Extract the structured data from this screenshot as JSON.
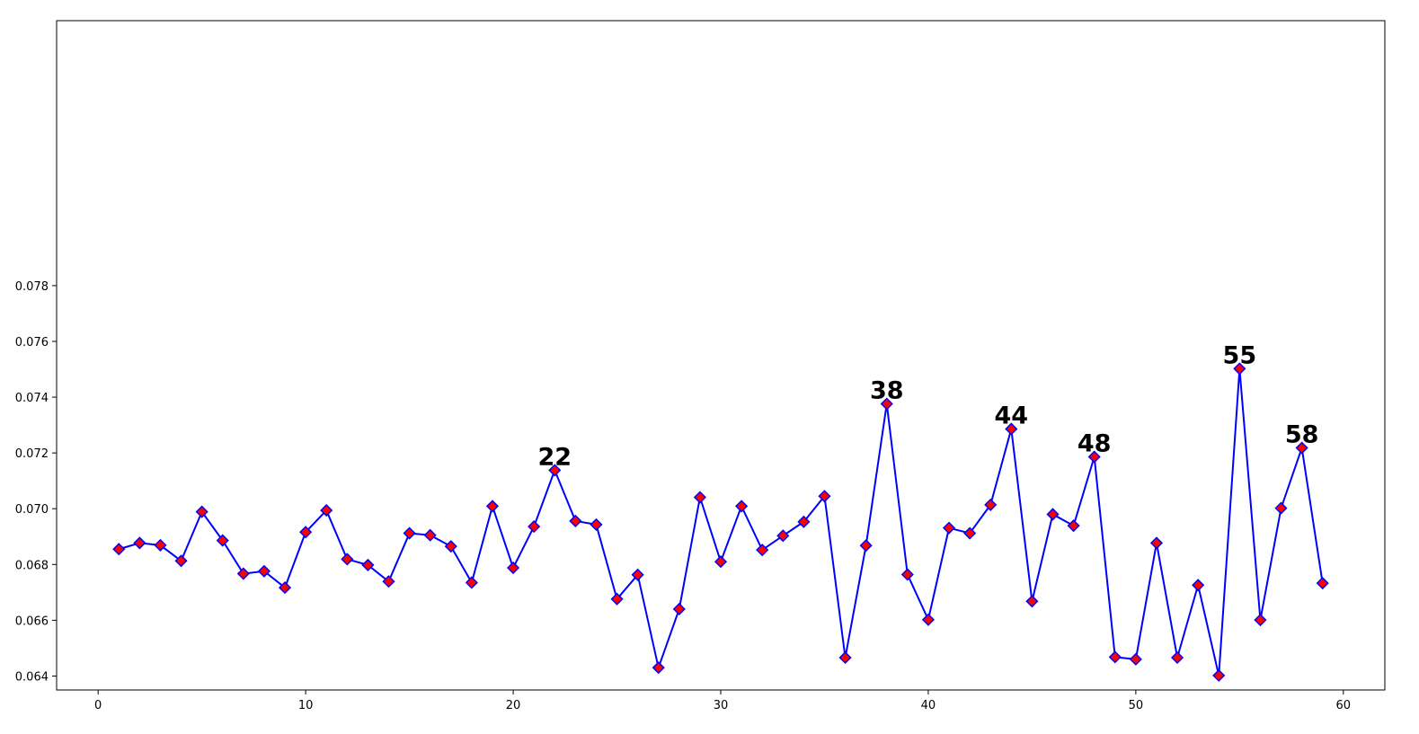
{
  "chart_data": {
    "type": "line",
    "title": "",
    "xlabel": "",
    "ylabel": "",
    "xlim": [
      -2,
      62
    ],
    "ylim": [
      0.0635,
      0.0875
    ],
    "xticks": [
      0,
      10,
      20,
      30,
      40,
      50,
      60
    ],
    "xtick_labels": [
      "0",
      "10",
      "20",
      "30",
      "40",
      "50",
      "60"
    ],
    "yticks": [
      0.064,
      0.066,
      0.068,
      0.07,
      0.072,
      0.074,
      0.076,
      0.078
    ],
    "ytick_labels": [
      "0.064",
      "0.066",
      "0.068",
      "0.070",
      "0.072",
      "0.074",
      "0.076",
      "0.078"
    ],
    "grid": false,
    "line_color": "#0000ff",
    "marker": "diamond",
    "marker_face_color": "#ff0000",
    "marker_edge_color": "#0000ff",
    "series": [
      {
        "x": [
          1,
          2,
          3,
          4,
          5,
          6,
          7,
          8,
          9,
          10,
          11,
          12,
          13,
          14,
          15,
          16,
          17,
          18,
          19,
          20,
          21,
          22,
          23,
          24,
          25,
          26,
          27,
          28,
          29,
          30,
          31,
          32,
          33,
          34,
          35,
          36,
          37,
          38,
          39,
          40,
          41,
          42,
          43,
          44,
          45,
          46,
          47,
          48,
          49,
          50,
          51,
          52,
          53,
          54,
          55,
          56,
          57,
          58,
          59
        ],
        "values": [
          0.06855,
          0.06877,
          0.06869,
          0.06813,
          0.06989,
          0.06886,
          0.06767,
          0.06776,
          0.06717,
          0.06916,
          0.06994,
          0.06819,
          0.06798,
          0.06739,
          0.06912,
          0.06905,
          0.06865,
          0.06735,
          0.07009,
          0.06788,
          0.06936,
          0.07138,
          0.06956,
          0.06943,
          0.06676,
          0.06763,
          0.0643,
          0.0664,
          0.07041,
          0.0681,
          0.07009,
          0.06852,
          0.06903,
          0.06953,
          0.07045,
          0.06466,
          0.06868,
          0.07376,
          0.06764,
          0.06602,
          0.06931,
          0.06912,
          0.07014,
          0.07286,
          0.06668,
          0.0698,
          0.06939,
          0.07186,
          0.06468,
          0.0646,
          0.06877,
          0.06466,
          0.06726,
          0.06402,
          0.07502,
          0.06601,
          0.07002,
          0.07218,
          0.06733
        ]
      }
    ],
    "annotations": [
      {
        "x": 22,
        "y": 0.07138,
        "text": "22"
      },
      {
        "x": 38,
        "y": 0.07376,
        "text": "38"
      },
      {
        "x": 44,
        "y": 0.07286,
        "text": "44"
      },
      {
        "x": 48,
        "y": 0.07186,
        "text": "48"
      },
      {
        "x": 55,
        "y": 0.07502,
        "text": "55"
      },
      {
        "x": 58,
        "y": 0.07218,
        "text": "58"
      }
    ]
  }
}
